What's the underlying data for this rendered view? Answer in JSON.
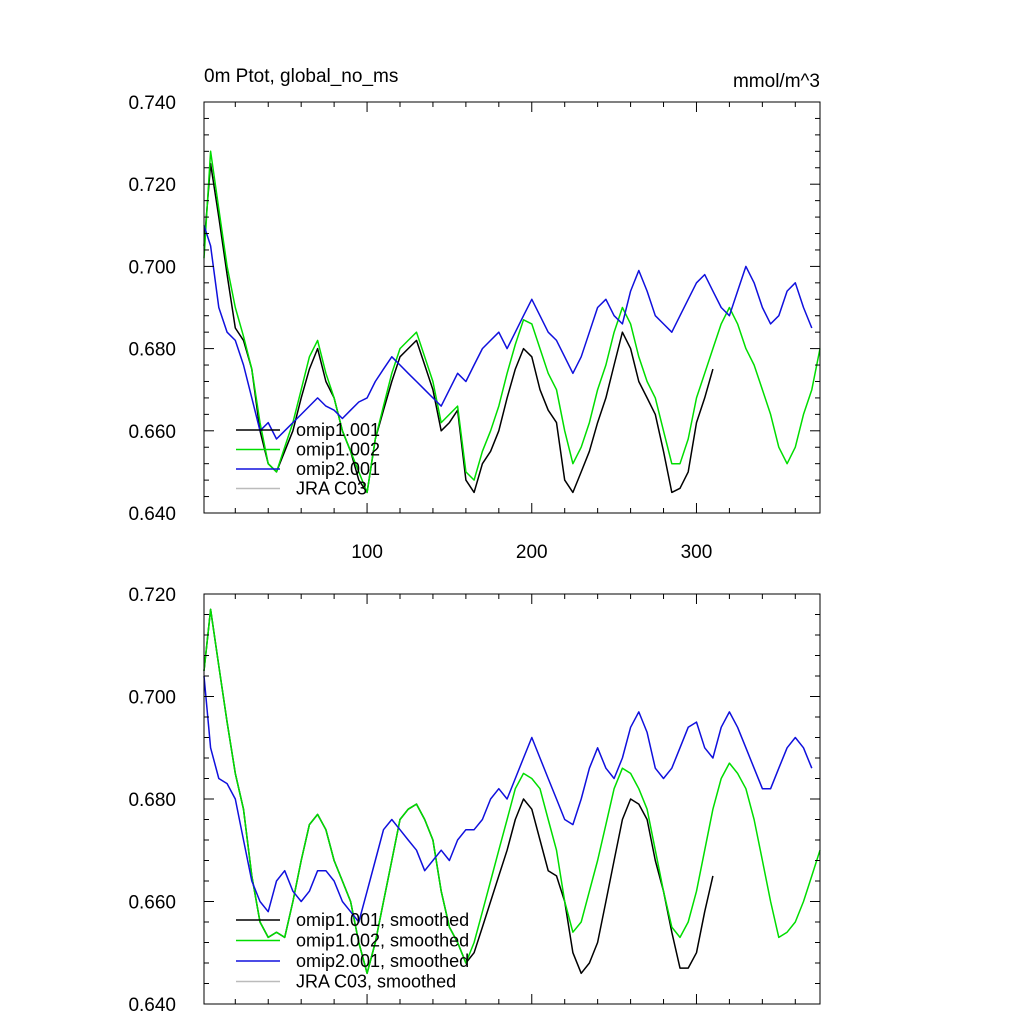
{
  "page": {
    "title_left": "0m Ptot, global_no_ms",
    "title_right": "mmol/m^3"
  },
  "colors": {
    "omip1_001": "#000000",
    "omip1_002": "#00dd00",
    "omip2_001": "#1010dd",
    "jra_c03": "#bbbbbb"
  },
  "chart_data": [
    {
      "type": "line",
      "title": "0m Ptot, global_no_ms",
      "units": "mmol/m^3",
      "xlim": [
        1,
        375
      ],
      "ylim": [
        0.64,
        0.74
      ],
      "x_ticks": [
        100,
        200,
        300
      ],
      "x_tick_labels": [
        "100",
        "200",
        "300"
      ],
      "y_ticks": [
        0.64,
        0.66,
        0.68,
        0.7,
        0.72,
        0.74
      ],
      "y_tick_labels": [
        "0.640",
        "0.660",
        "0.680",
        "0.700",
        "0.720",
        "0.740"
      ],
      "legend_position": "bottom-left",
      "series": [
        {
          "name": "omip1.001",
          "color": "#000000",
          "x": [
            1,
            5,
            10,
            15,
            20,
            25,
            30,
            35,
            40,
            45,
            50,
            55,
            60,
            65,
            70,
            75,
            80,
            85,
            90,
            95,
            100,
            105,
            110,
            115,
            120,
            125,
            130,
            135,
            140,
            145,
            150,
            155,
            160,
            165,
            170,
            175,
            180,
            185,
            190,
            195,
            200,
            205,
            210,
            215,
            220,
            225,
            230,
            235,
            240,
            245,
            250,
            255,
            260,
            265,
            270,
            275,
            280,
            285,
            290,
            295,
            300,
            305,
            310
          ],
          "y": [
            0.705,
            0.725,
            0.712,
            0.698,
            0.685,
            0.682,
            0.675,
            0.66,
            0.652,
            0.65,
            0.655,
            0.66,
            0.668,
            0.675,
            0.68,
            0.672,
            0.668,
            0.66,
            0.655,
            0.648,
            0.645,
            0.658,
            0.665,
            0.672,
            0.678,
            0.68,
            0.682,
            0.676,
            0.67,
            0.66,
            0.662,
            0.665,
            0.648,
            0.645,
            0.652,
            0.655,
            0.66,
            0.668,
            0.675,
            0.68,
            0.678,
            0.67,
            0.665,
            0.662,
            0.648,
            0.645,
            0.65,
            0.655,
            0.662,
            0.668,
            0.676,
            0.684,
            0.68,
            0.672,
            0.668,
            0.664,
            0.655,
            0.645,
            0.646,
            0.65,
            0.662,
            0.668,
            0.675
          ]
        },
        {
          "name": "omip1.002",
          "color": "#00dd00",
          "x": [
            1,
            5,
            10,
            15,
            20,
            25,
            30,
            35,
            40,
            45,
            50,
            55,
            60,
            65,
            70,
            75,
            80,
            85,
            90,
            95,
            100,
            105,
            110,
            115,
            120,
            125,
            130,
            135,
            140,
            145,
            150,
            155,
            160,
            165,
            170,
            175,
            180,
            185,
            190,
            195,
            200,
            205,
            210,
            215,
            220,
            225,
            230,
            235,
            240,
            245,
            250,
            255,
            260,
            265,
            270,
            275,
            280,
            285,
            290,
            295,
            300,
            305,
            310,
            315,
            320,
            325,
            330,
            335,
            340,
            345,
            350,
            355,
            360,
            365,
            370,
            375
          ],
          "y": [
            0.702,
            0.728,
            0.714,
            0.7,
            0.69,
            0.683,
            0.675,
            0.662,
            0.652,
            0.65,
            0.656,
            0.662,
            0.67,
            0.678,
            0.682,
            0.674,
            0.668,
            0.66,
            0.655,
            0.65,
            0.645,
            0.658,
            0.666,
            0.674,
            0.68,
            0.682,
            0.684,
            0.678,
            0.672,
            0.662,
            0.664,
            0.666,
            0.65,
            0.648,
            0.655,
            0.66,
            0.666,
            0.674,
            0.681,
            0.687,
            0.686,
            0.68,
            0.674,
            0.67,
            0.66,
            0.652,
            0.656,
            0.662,
            0.67,
            0.676,
            0.684,
            0.69,
            0.686,
            0.678,
            0.672,
            0.668,
            0.66,
            0.652,
            0.652,
            0.658,
            0.668,
            0.674,
            0.68,
            0.686,
            0.69,
            0.686,
            0.68,
            0.676,
            0.67,
            0.664,
            0.656,
            0.652,
            0.656,
            0.664,
            0.67,
            0.68
          ]
        },
        {
          "name": "omip2.001",
          "color": "#1010dd",
          "x": [
            1,
            5,
            10,
            15,
            20,
            25,
            30,
            35,
            40,
            45,
            50,
            55,
            60,
            65,
            70,
            75,
            80,
            85,
            90,
            95,
            100,
            105,
            110,
            115,
            120,
            125,
            130,
            135,
            140,
            145,
            150,
            155,
            160,
            165,
            170,
            175,
            180,
            185,
            190,
            195,
            200,
            205,
            210,
            215,
            220,
            225,
            230,
            235,
            240,
            245,
            250,
            255,
            260,
            265,
            270,
            275,
            280,
            285,
            290,
            295,
            300,
            305,
            310,
            315,
            320,
            325,
            330,
            335,
            340,
            345,
            350,
            355,
            360,
            365,
            370
          ],
          "y": [
            0.71,
            0.705,
            0.69,
            0.684,
            0.682,
            0.676,
            0.668,
            0.66,
            0.662,
            0.658,
            0.66,
            0.662,
            0.664,
            0.666,
            0.668,
            0.666,
            0.665,
            0.663,
            0.665,
            0.667,
            0.668,
            0.672,
            0.675,
            0.678,
            0.676,
            0.674,
            0.672,
            0.67,
            0.668,
            0.666,
            0.67,
            0.674,
            0.672,
            0.676,
            0.68,
            0.682,
            0.684,
            0.68,
            0.684,
            0.688,
            0.692,
            0.688,
            0.684,
            0.682,
            0.678,
            0.674,
            0.678,
            0.684,
            0.69,
            0.692,
            0.688,
            0.686,
            0.694,
            0.699,
            0.694,
            0.688,
            0.686,
            0.684,
            0.688,
            0.692,
            0.696,
            0.698,
            0.694,
            0.69,
            0.688,
            0.694,
            0.7,
            0.696,
            0.69,
            0.686,
            0.688,
            0.694,
            0.696,
            0.69,
            0.685
          ]
        },
        {
          "name": "JRA C03",
          "color": "#bbbbbb",
          "x": [],
          "y": []
        }
      ]
    },
    {
      "type": "line",
      "title": "",
      "xlim": [
        1,
        375
      ],
      "ylim": [
        0.64,
        0.72
      ],
      "x_ticks": [
        100,
        200,
        300
      ],
      "x_tick_labels": [],
      "y_ticks": [
        0.64,
        0.66,
        0.68,
        0.7,
        0.72
      ],
      "y_tick_labels": [
        "0.640",
        "0.660",
        "0.680",
        "0.700",
        "0.720"
      ],
      "legend_position": "bottom-left",
      "series": [
        {
          "name": "omip1.001, smoothed",
          "color": "#000000",
          "x": [
            1,
            5,
            10,
            15,
            20,
            25,
            30,
            35,
            40,
            45,
            50,
            55,
            60,
            65,
            70,
            75,
            80,
            85,
            90,
            95,
            100,
            105,
            110,
            115,
            120,
            125,
            130,
            135,
            140,
            145,
            150,
            155,
            160,
            165,
            170,
            175,
            180,
            185,
            190,
            195,
            200,
            205,
            210,
            215,
            220,
            225,
            230,
            235,
            240,
            245,
            250,
            255,
            260,
            265,
            270,
            275,
            280,
            285,
            290,
            295,
            300,
            305,
            310
          ],
          "y": [
            0.705,
            0.717,
            0.706,
            0.695,
            0.685,
            0.678,
            0.665,
            0.656,
            0.653,
            0.654,
            0.653,
            0.66,
            0.668,
            0.675,
            0.677,
            0.674,
            0.668,
            0.664,
            0.66,
            0.652,
            0.646,
            0.652,
            0.66,
            0.668,
            0.676,
            0.678,
            0.679,
            0.676,
            0.672,
            0.662,
            0.655,
            0.652,
            0.648,
            0.65,
            0.655,
            0.66,
            0.665,
            0.67,
            0.676,
            0.68,
            0.678,
            0.672,
            0.666,
            0.665,
            0.66,
            0.65,
            0.646,
            0.648,
            0.652,
            0.66,
            0.668,
            0.676,
            0.68,
            0.679,
            0.676,
            0.668,
            0.662,
            0.654,
            0.647,
            0.647,
            0.65,
            0.658,
            0.665
          ]
        },
        {
          "name": "omip1.002, smoothed",
          "color": "#00dd00",
          "x": [
            1,
            5,
            10,
            15,
            20,
            25,
            30,
            35,
            40,
            45,
            50,
            55,
            60,
            65,
            70,
            75,
            80,
            85,
            90,
            95,
            100,
            105,
            110,
            115,
            120,
            125,
            130,
            135,
            140,
            145,
            150,
            155,
            160,
            165,
            170,
            175,
            180,
            185,
            190,
            195,
            200,
            205,
            210,
            215,
            220,
            225,
            230,
            235,
            240,
            245,
            250,
            255,
            260,
            265,
            270,
            275,
            280,
            285,
            290,
            295,
            300,
            305,
            310,
            315,
            320,
            325,
            330,
            335,
            340,
            345,
            350,
            355,
            360,
            365,
            370,
            375
          ],
          "y": [
            0.705,
            0.717,
            0.706,
            0.695,
            0.685,
            0.678,
            0.665,
            0.656,
            0.653,
            0.654,
            0.653,
            0.66,
            0.668,
            0.675,
            0.677,
            0.674,
            0.668,
            0.664,
            0.66,
            0.652,
            0.646,
            0.652,
            0.66,
            0.668,
            0.676,
            0.678,
            0.679,
            0.676,
            0.672,
            0.662,
            0.655,
            0.652,
            0.648,
            0.652,
            0.658,
            0.664,
            0.67,
            0.676,
            0.682,
            0.685,
            0.684,
            0.682,
            0.676,
            0.67,
            0.66,
            0.654,
            0.656,
            0.662,
            0.668,
            0.675,
            0.682,
            0.686,
            0.685,
            0.682,
            0.678,
            0.67,
            0.662,
            0.655,
            0.653,
            0.656,
            0.662,
            0.67,
            0.678,
            0.684,
            0.687,
            0.685,
            0.682,
            0.676,
            0.668,
            0.66,
            0.653,
            0.654,
            0.656,
            0.66,
            0.665,
            0.67
          ]
        },
        {
          "name": "omip2.001, smoothed",
          "color": "#1010dd",
          "x": [
            1,
            5,
            10,
            15,
            20,
            25,
            30,
            35,
            40,
            45,
            50,
            55,
            60,
            65,
            70,
            75,
            80,
            85,
            90,
            95,
            100,
            105,
            110,
            115,
            120,
            125,
            130,
            135,
            140,
            145,
            150,
            155,
            160,
            165,
            170,
            175,
            180,
            185,
            190,
            195,
            200,
            205,
            210,
            215,
            220,
            225,
            230,
            235,
            240,
            245,
            250,
            255,
            260,
            265,
            270,
            275,
            280,
            285,
            290,
            295,
            300,
            305,
            310,
            315,
            320,
            325,
            330,
            335,
            340,
            345,
            350,
            355,
            360,
            365,
            370
          ],
          "y": [
            0.704,
            0.69,
            0.684,
            0.683,
            0.68,
            0.672,
            0.664,
            0.66,
            0.658,
            0.664,
            0.666,
            0.662,
            0.66,
            0.662,
            0.666,
            0.666,
            0.664,
            0.66,
            0.658,
            0.656,
            0.662,
            0.668,
            0.674,
            0.676,
            0.674,
            0.672,
            0.67,
            0.666,
            0.668,
            0.67,
            0.668,
            0.672,
            0.674,
            0.674,
            0.676,
            0.68,
            0.682,
            0.68,
            0.684,
            0.688,
            0.692,
            0.688,
            0.684,
            0.68,
            0.676,
            0.675,
            0.68,
            0.686,
            0.69,
            0.686,
            0.684,
            0.688,
            0.694,
            0.697,
            0.693,
            0.686,
            0.684,
            0.686,
            0.69,
            0.694,
            0.695,
            0.69,
            0.688,
            0.694,
            0.697,
            0.694,
            0.69,
            0.686,
            0.682,
            0.682,
            0.686,
            0.69,
            0.692,
            0.69,
            0.686
          ]
        },
        {
          "name": "JRA C03, smoothed",
          "color": "#bbbbbb",
          "x": [],
          "y": []
        }
      ]
    }
  ]
}
